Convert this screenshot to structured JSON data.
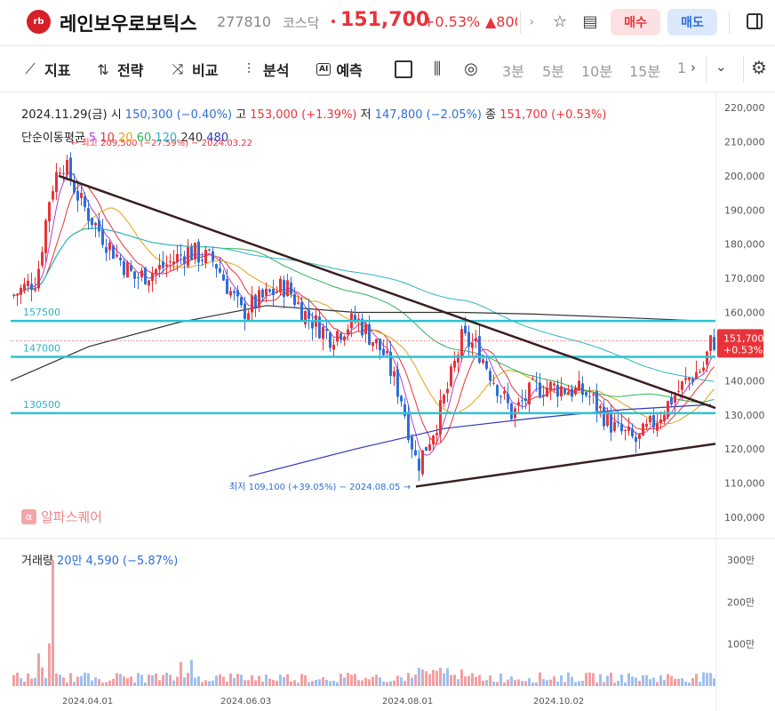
{
  "header": {
    "logo_text": "rb",
    "stock_name": "레인보우로보틱스",
    "stock_code": "277810",
    "market": "코스닥",
    "price": "151,700",
    "change_pct": "+0.53%",
    "change_amt": "▲800",
    "buy_label": "매수",
    "sell_label": "매도",
    "star_icon": "star-icon",
    "memo_icon": "clipboard-icon",
    "panel_icon": "panel-icon"
  },
  "toolbar": {
    "items": [
      {
        "icon": "indicator-icon",
        "label": "지표"
      },
      {
        "icon": "strategy-icon",
        "label": "전략"
      },
      {
        "icon": "compare-icon",
        "label": "비교"
      },
      {
        "icon": "analysis-icon",
        "label": "분석"
      },
      {
        "icon": "ai-icon",
        "label": "예측"
      }
    ],
    "ai_label": "AI",
    "timeframes": [
      "3분",
      "5분",
      "10분",
      "15분",
      "1"
    ],
    "more": "›",
    "dropdown": "⌄"
  },
  "chart": {
    "info": {
      "date": "2024.11.29(금)",
      "open_label": "시",
      "open": "150,300 (−0.40%)",
      "high_label": "고",
      "high": "153,000 (+1.39%)",
      "low_label": "저",
      "low": "147,800 (−2.05%)",
      "close_label": "종",
      "close": "151,700 (+0.53%)"
    },
    "ma": {
      "label": "단순이동평균",
      "periods": [
        {
          "p": "5",
          "color": "#b33fd1"
        },
        {
          "p": "10",
          "color": "#e8333a"
        },
        {
          "p": "20",
          "color": "#e0a415"
        },
        {
          "p": "60",
          "color": "#2fb45b"
        },
        {
          "p": "120",
          "color": "#2bb3c8"
        },
        {
          "p": "240",
          "color": "#333333"
        },
        {
          "p": "480",
          "color": "#2f37b8"
        }
      ]
    },
    "high_annotation": "최고 209,500 (−27.59%) − 2024.03.22",
    "low_annotation": "최저 109,100 (+39.05%) − 2024.08.05",
    "hlines": [
      "157500",
      "147000",
      "130500"
    ],
    "current_price_tag": "151,700",
    "current_pct_tag": "+0.53%",
    "y_ticks": [
      "220,000",
      "210,000",
      "200,000",
      "190,000",
      "180,000",
      "170,000",
      "160,000",
      "140,000",
      "130,000",
      "120,000",
      "110,000",
      "100,000"
    ],
    "x_ticks": [
      "2024.04.01",
      "2024.06.03",
      "2024.08.01",
      "2024.10.02"
    ],
    "watermark": "알파스퀘어",
    "volume": {
      "label": "거래량",
      "value": "20만 4,590 (−5.87%)",
      "ticks": [
        "300만",
        "200만",
        "100만"
      ]
    },
    "colors": {
      "up": "#e8333a",
      "down": "#2d6fd6",
      "hline": "#2bc4d4",
      "trend": "#3a1f1f"
    }
  }
}
